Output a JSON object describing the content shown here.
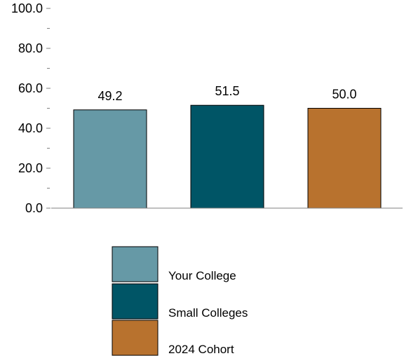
{
  "chart_data": {
    "type": "bar",
    "categories": [
      "Your College",
      "Small Colleges",
      "2024 Cohort"
    ],
    "values": [
      49.2,
      51.5,
      50.0
    ],
    "value_labels": [
      "49.2",
      "51.5",
      "50.0"
    ],
    "colors": [
      "#6699A6",
      "#005566",
      "#B8722E"
    ],
    "ylim": [
      0,
      100
    ],
    "yticks": [
      0,
      20,
      40,
      60,
      80,
      100
    ],
    "ytick_labels": [
      "0.0",
      "20.0",
      "40.0",
      "60.0",
      "80.0",
      "100.0"
    ],
    "minor_ticks": [
      10,
      30,
      50,
      70,
      90
    ],
    "grid": false,
    "legend_position": "bottom",
    "legend": [
      "Your College",
      "Small Colleges",
      "2024 Cohort"
    ]
  }
}
